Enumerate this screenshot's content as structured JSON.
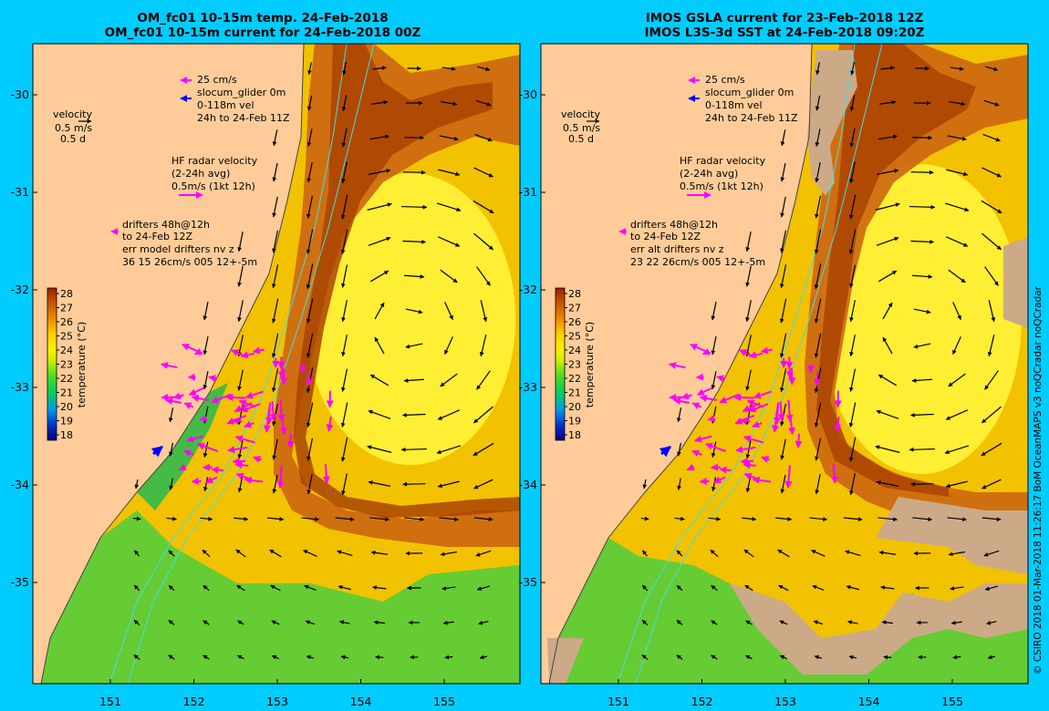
{
  "left_panel": {
    "title_line1": "OM_fc01 10-15m temp. 24-Feb-2018",
    "title_line2": "OM_fc01 10-15m current for 24-Feb-2018 00Z",
    "legend": {
      "speed_ref": "25 cm/s",
      "glider": "slocum_glider 0m",
      "glider_vel": "0-118m vel",
      "glider_time": "24h to 24-Feb 11Z",
      "velocity": "velocity",
      "velocity_scale": "0.5 m/s",
      "velocity_days": "0.5 d",
      "hf_title": "HF radar velocity",
      "hf_avg": "(2-24h avg)",
      "hf_scale": "0.5m/s (1kt 12h)",
      "drift_1": "drifters 48h@12h",
      "drift_2": "to 24-Feb 12Z",
      "drift_3": "err model drifters nv z",
      "drift_4": "36 15 26cm/s 005 12+-5m"
    }
  },
  "right_panel": {
    "title_line1": "IMOS GSLA current for 23-Feb-2018 12Z",
    "title_line2": "IMOS L3S-3d SST at 24-Feb-2018 09:20Z",
    "legend": {
      "speed_ref": "25 cm/s",
      "glider": "slocum_glider 0m",
      "glider_vel": "0-118m vel",
      "glider_time": "24h to 24-Feb 11Z",
      "velocity": "velocity",
      "velocity_scale": "0.5 m/s",
      "velocity_days": "0.5 d",
      "hf_title": "HF radar velocity",
      "hf_avg": "(2-24h avg)",
      "hf_scale": "0.5m/s (1kt 12h)",
      "drift_1": "drifters 48h@12h",
      "drift_2": "to 24-Feb 12Z",
      "drift_3": "err alt drifters nv z",
      "drift_4": "23 22 26cm/s 005 12+-5m"
    }
  },
  "y_ticks": [
    "-30",
    "-31",
    "-32",
    "-33",
    "-34",
    "-35"
  ],
  "x_ticks": [
    "151",
    "152",
    "153",
    "154",
    "155"
  ],
  "colorbar": {
    "title": "temperature (°C)",
    "ticks": [
      "28",
      "27",
      "26",
      "25",
      "24",
      "23",
      "22",
      "21",
      "20",
      "19",
      "18"
    ]
  },
  "credit": "© CSIRO 2018   01-Mar-2018 11:26:17 BoM OceanMAPS v3 noQCradar noQCradar",
  "colors": {
    "background": "#00ccff",
    "land": "#ffcc99",
    "drifter_magenta": "#ff00ff",
    "glider_blue": "#0000ff",
    "bathy_contour": "#44dddd"
  }
}
